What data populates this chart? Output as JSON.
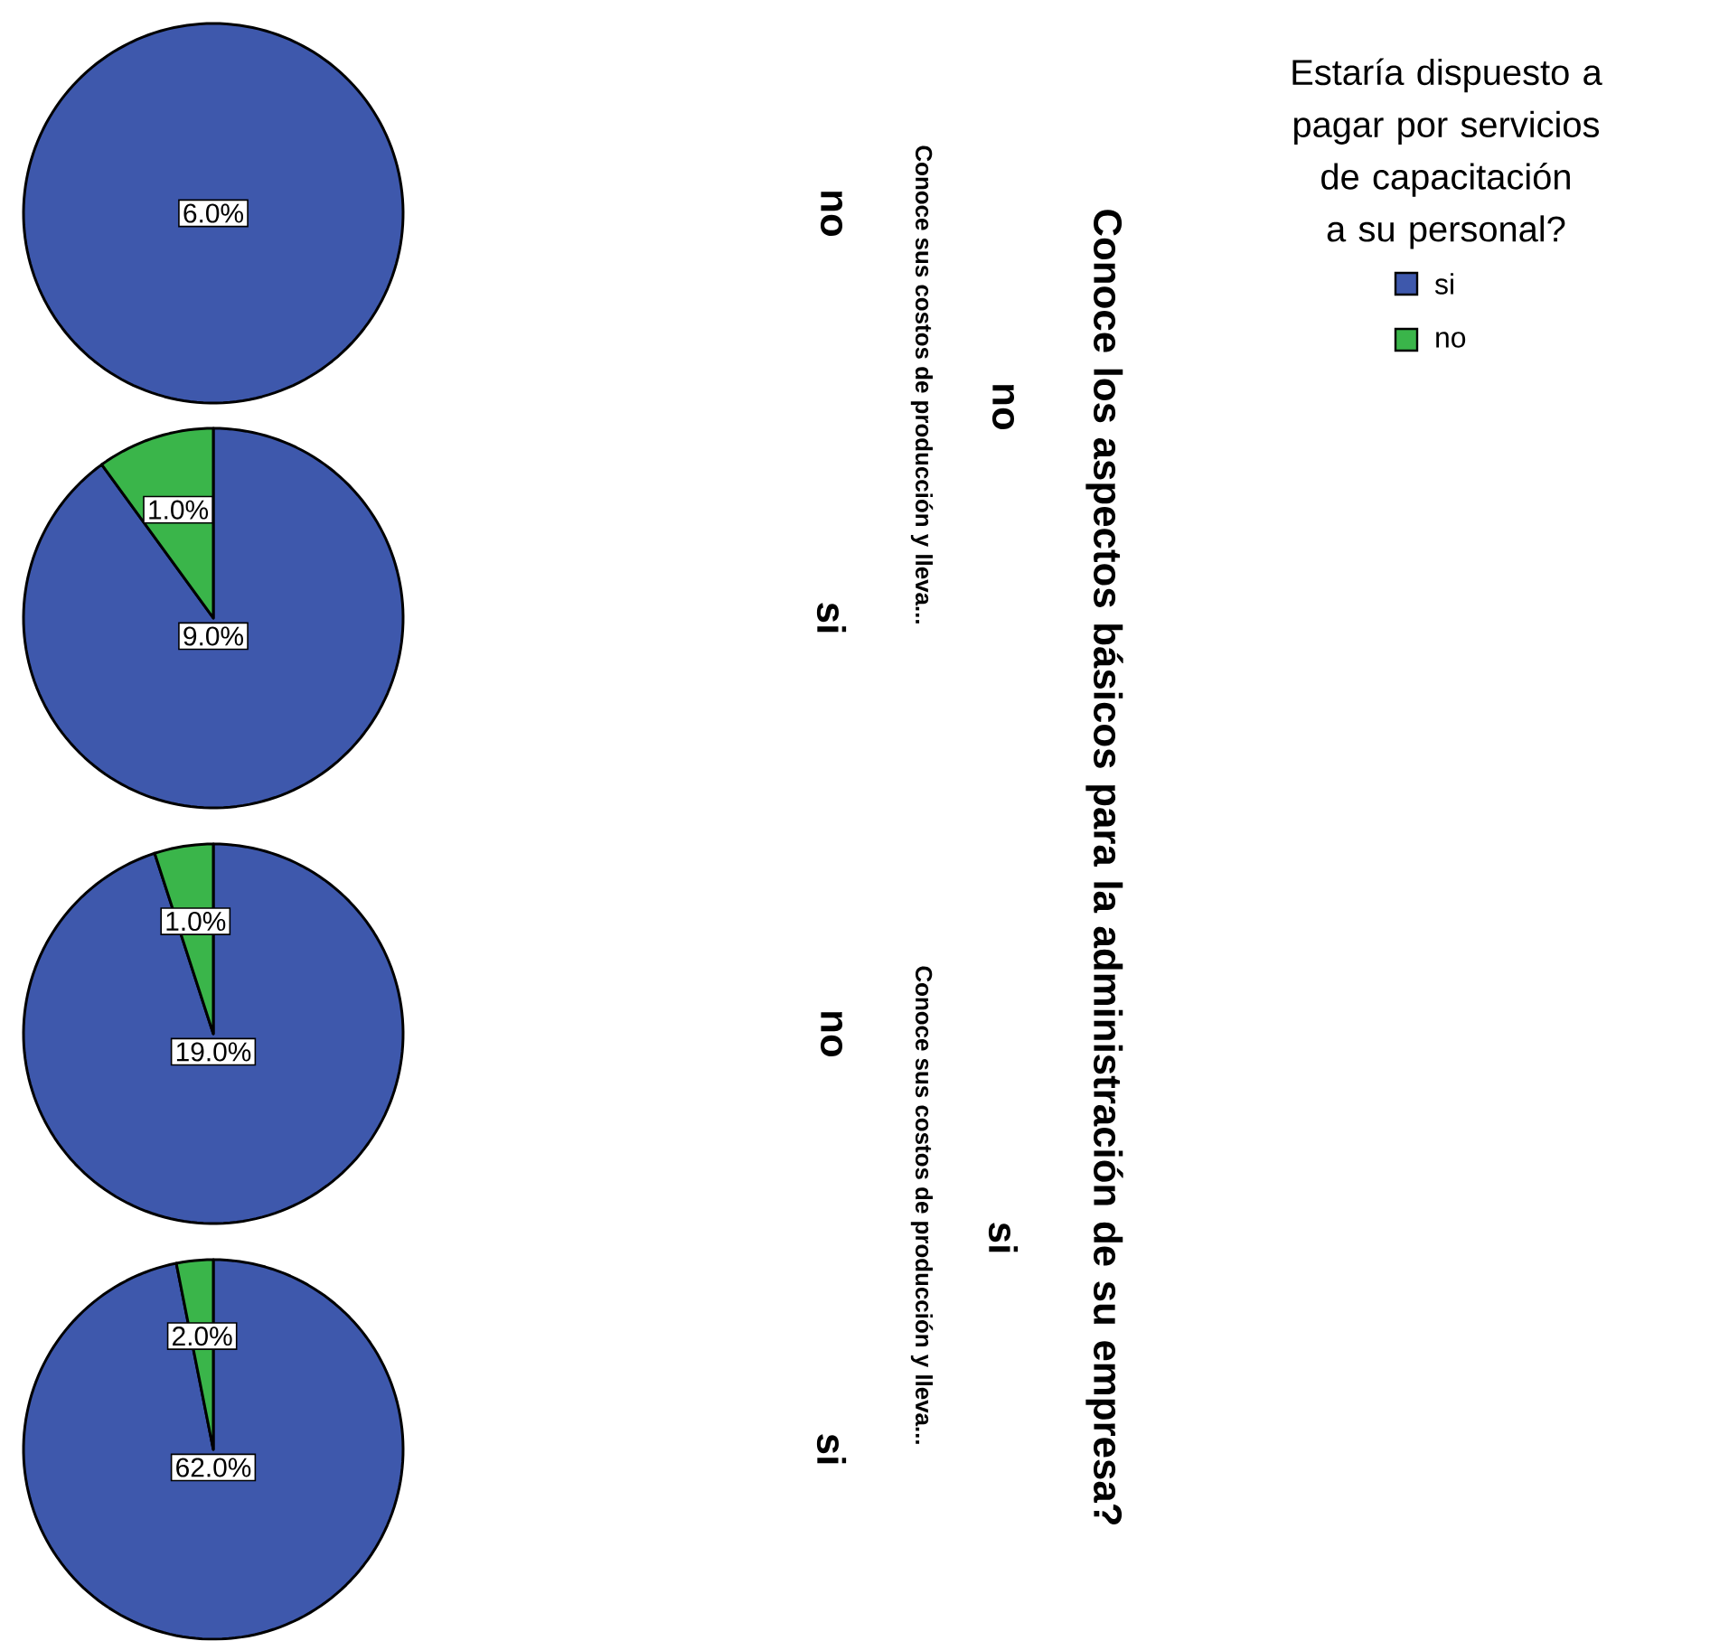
{
  "chart_data": [
    {
      "type": "pie",
      "title": "no",
      "subtitle": "no",
      "ylabel": "Conoce sus costos de producción y lleva...",
      "annotations": [
        "Conoce los aspectos básicos para la administración de su empresa?",
        "si"
      ],
      "legend_title": "Estaría dispuesto a pagar por servicios de capacitación a su personal?",
      "legend": "right",
      "categories": [
        "si",
        "no"
      ],
      "values": [
        6.0,
        null
      ],
      "colors": [
        "#3e58ac",
        "#3ab54a"
      ],
      "value_labels": [
        "6.0%",
        null
      ]
    },
    {
      "type": "pie",
      "title": "si",
      "categories": [
        null,
        null
      ],
      "values": [
        9.0,
        1.0
      ],
      "colors": [
        "#3e58ac",
        "#3ab54a"
      ],
      "value_labels": [
        "9.0%",
        "1.0%"
      ]
    },
    {
      "type": "pie",
      "title": "no",
      "ylabel": "Conoce sus costos de producción y lleva...",
      "categories": [
        null,
        null
      ],
      "values": [
        19.0,
        1.0
      ],
      "colors": [
        "#3e58ac",
        "#3ab54a"
      ],
      "value_labels": [
        "19.0%",
        "1.0%"
      ]
    },
    {
      "type": "pie",
      "title": "si",
      "categories": [
        null,
        null
      ],
      "values": [
        62.0,
        2.0
      ],
      "colors": [
        "#3e58ac",
        "#3ab54a"
      ],
      "value_labels": [
        "62.0%",
        "2.0%"
      ]
    }
  ]
}
